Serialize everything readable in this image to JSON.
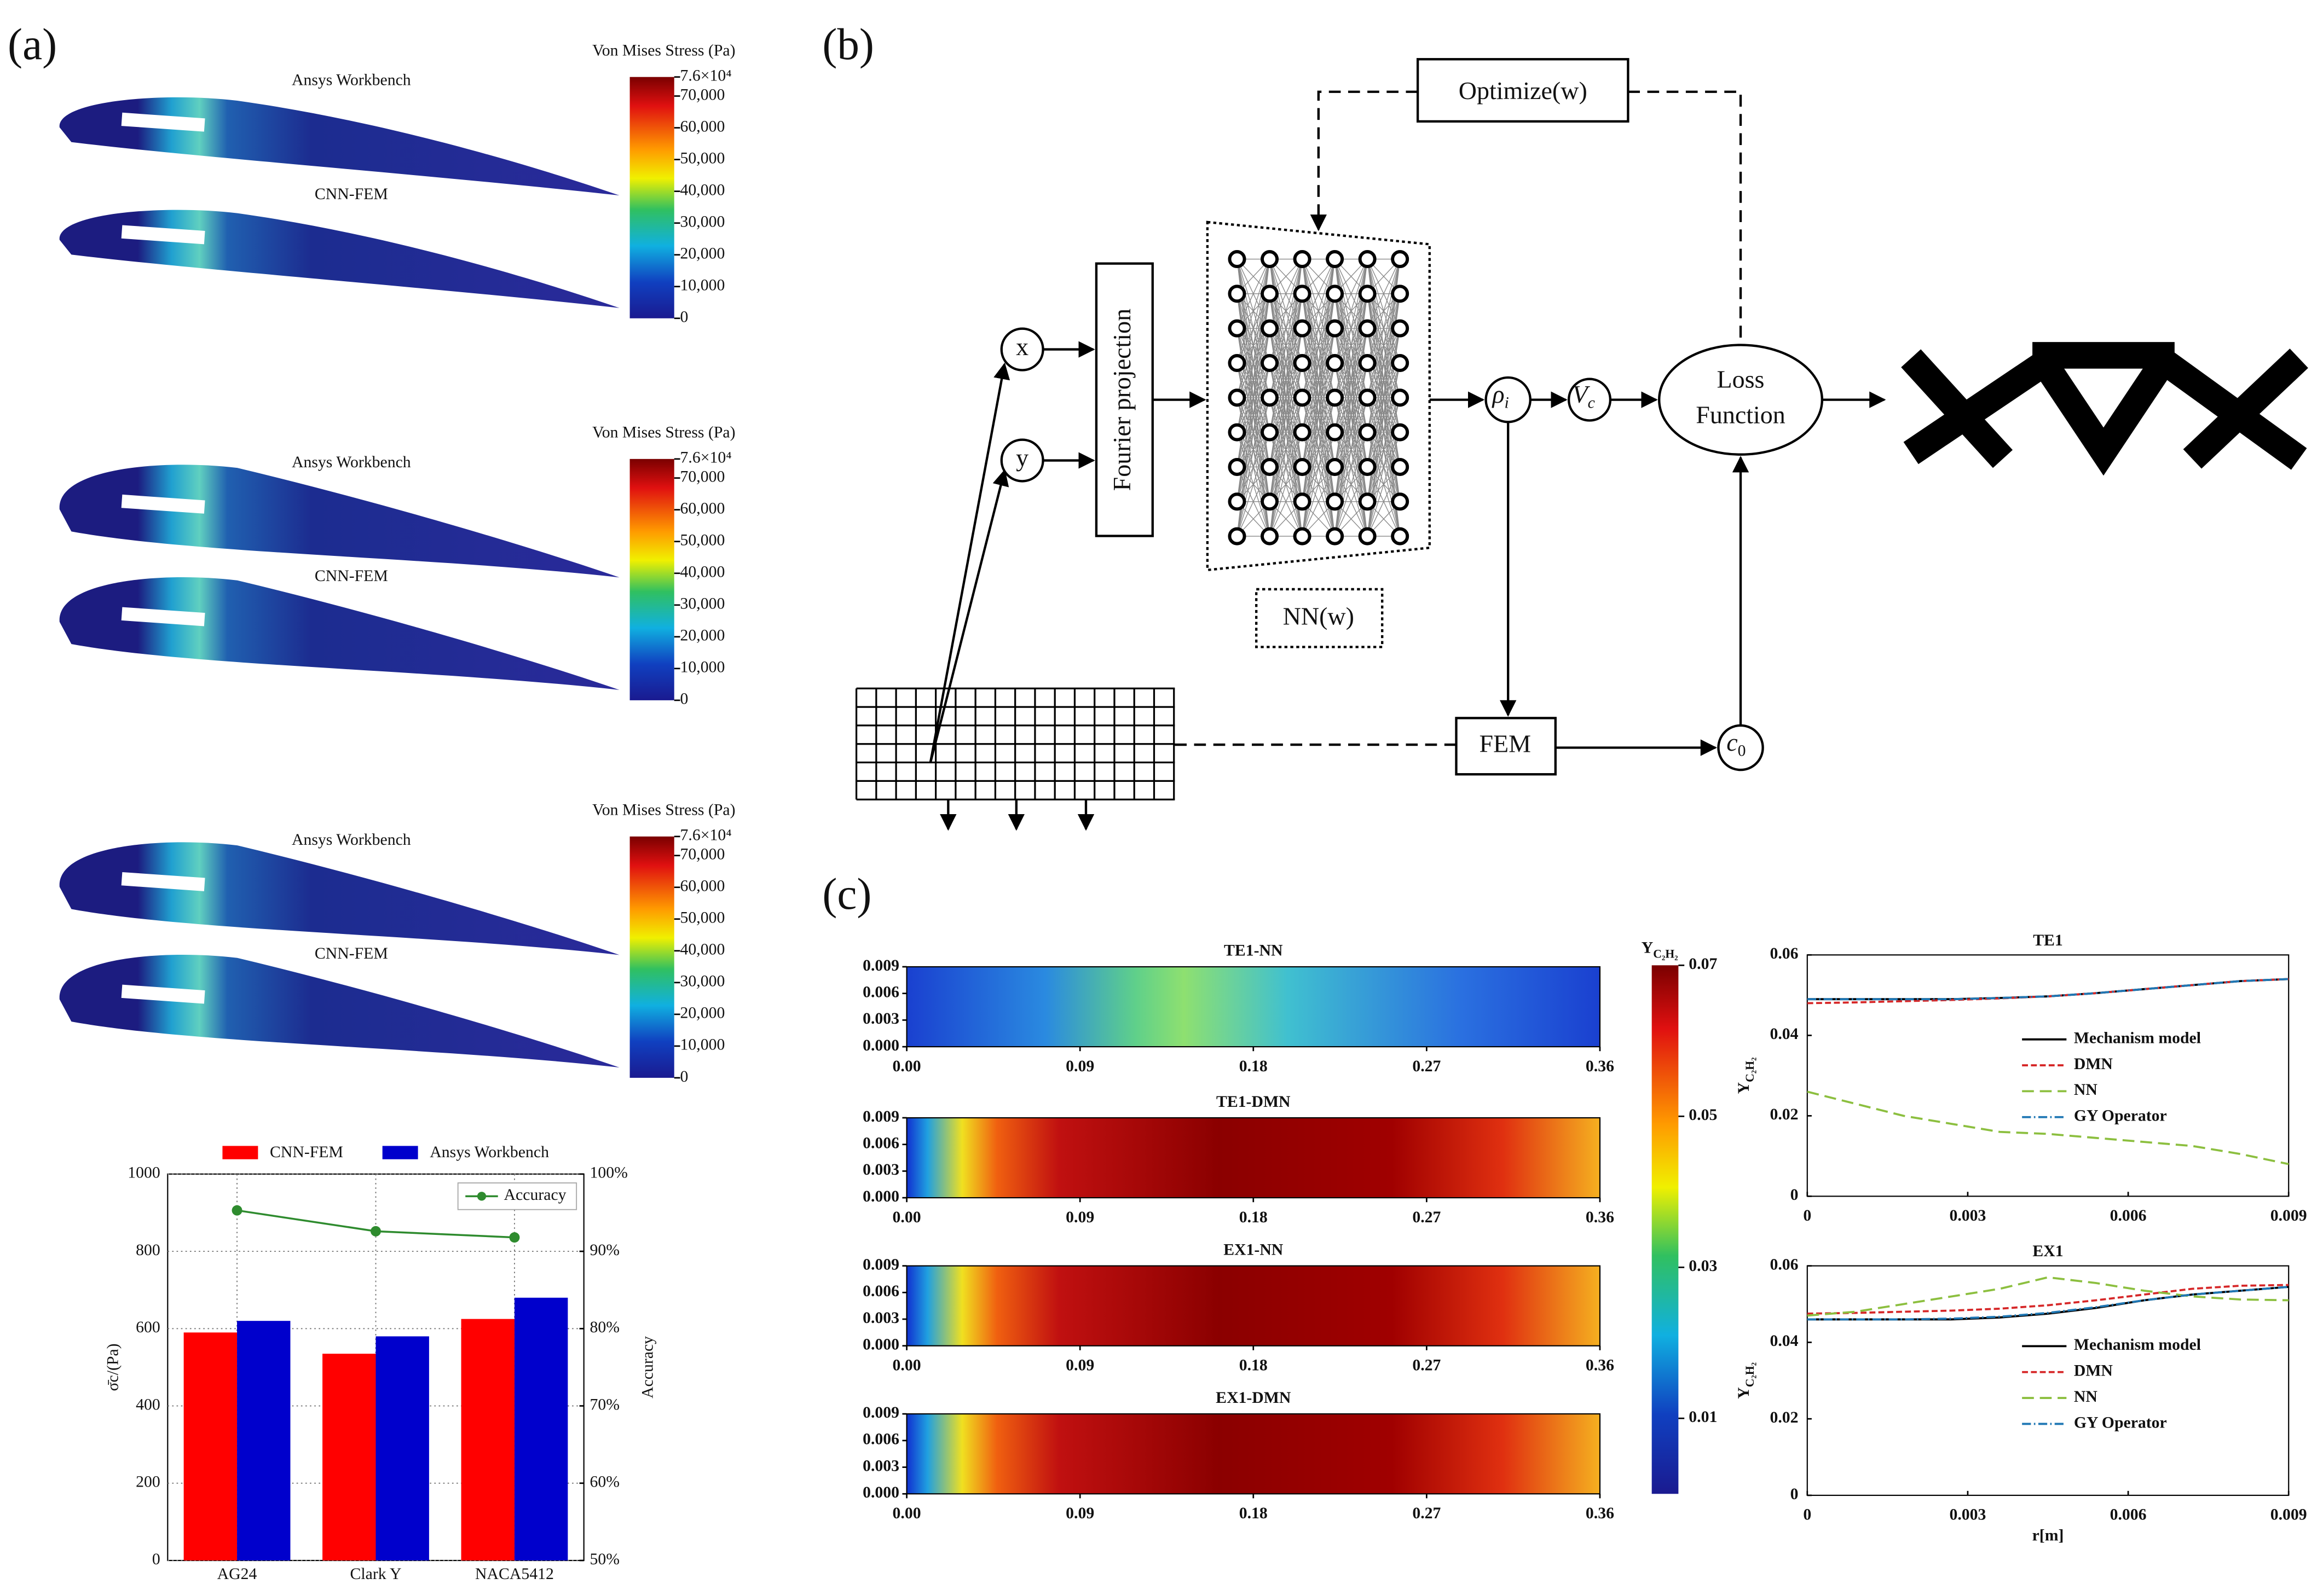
{
  "panel_labels": [
    "(a)",
    "(b)",
    "(c)"
  ],
  "airfoils": {
    "titles": [
      "Ansys Workbench",
      "CNN-FEM"
    ],
    "colorbar": {
      "title": "Von Mises Stress (Pa)",
      "lim": [
        0,
        76000
      ],
      "ticks": [
        {
          "value": 76000,
          "label": "7.6×10⁴"
        },
        {
          "value": 70000,
          "label": "70,000"
        },
        {
          "value": 60000,
          "label": "60,000"
        },
        {
          "value": 50000,
          "label": "50,000"
        },
        {
          "value": 40000,
          "label": "40,000"
        },
        {
          "value": 30000,
          "label": "30,000"
        },
        {
          "value": 20000,
          "label": "20,000"
        },
        {
          "value": 10000,
          "label": "10,000"
        },
        0
      ]
    }
  },
  "diagram": {
    "optimize": "Optimize(w)",
    "x": "x",
    "y": "y",
    "fourier": "Fourier projection",
    "nn": "NN(w)",
    "rho": {
      "base": "ρ",
      "sub": "i"
    },
    "vc": {
      "base": "V",
      "sub": "c"
    },
    "loss": [
      "Loss",
      "Function"
    ],
    "fem": "FEM",
    "c0": {
      "base": "c",
      "sub": "0"
    }
  },
  "heatmaps": {
    "titles": [
      "TE1-NN",
      "TE1-DMN",
      "EX1-NN",
      "EX1-DMN"
    ],
    "xlim": [
      0,
      0.36
    ],
    "xticks": [
      {
        "value": 0,
        "label": "0.00"
      },
      0.09,
      0.18,
      0.27,
      0.36
    ],
    "ylim": [
      0,
      0.009
    ],
    "yticks": [
      {
        "value": 0,
        "label": "0.000"
      },
      0.003,
      0.006,
      0.009
    ],
    "colorbar": {
      "title": {
        "base": "Y",
        "sub": "C₂H₂"
      },
      "lim": [
        0,
        0.07
      ],
      "ticks": [
        0.01,
        0.03,
        0.05,
        0.07
      ]
    }
  },
  "chart_data": [
    {
      "type": "bar",
      "categories": [
        "AG24",
        "Clark Y",
        "NACA5412"
      ],
      "series": [
        {
          "name": "CNN-FEM",
          "color": "#ff0000",
          "values": [
            590,
            535,
            625
          ]
        },
        {
          "name": "Ansys Workbench",
          "color": "#0000cc",
          "values": [
            620,
            580,
            680
          ]
        },
        {
          "name": "Accuracy",
          "color": "#2e8b2e",
          "values": [
            95.3,
            92.6,
            91.8
          ],
          "axis": "y2"
        }
      ],
      "ylim": [
        0,
        1000
      ],
      "yticks": [
        0,
        200,
        400,
        600,
        800,
        1000
      ],
      "y2lim": [
        50,
        100
      ],
      "y2ticks": [
        {
          "value": 50,
          "label": "50%"
        },
        {
          "value": 60,
          "label": "60%"
        },
        {
          "value": 70,
          "label": "70%"
        },
        {
          "value": 80,
          "label": "80%"
        },
        {
          "value": 90,
          "label": "90%"
        },
        {
          "value": 100,
          "label": "100%"
        }
      ],
      "y_label": "σ̄c/(Pa)",
      "y2_label": "Accuracy",
      "grid": true
    },
    {
      "type": "line",
      "title": "TE1",
      "x": [
        0,
        0.0009,
        0.0018,
        0.0027,
        0.0036,
        0.0045,
        0.0054,
        0.0063,
        0.0072,
        0.0081,
        0.009
      ],
      "series": [
        {
          "name": "Mechanism model",
          "color": "#000000",
          "dash": "none",
          "values": [
            0.049,
            0.049,
            0.049,
            0.049,
            0.0493,
            0.0497,
            0.0505,
            0.0515,
            0.0525,
            0.0535,
            0.054
          ]
        },
        {
          "name": "DMN",
          "color": "#d62728",
          "dash": "4,2",
          "values": [
            0.048,
            0.0482,
            0.0485,
            0.0488,
            0.0492,
            0.0497,
            0.0505,
            0.0515,
            0.0525,
            0.0535,
            0.054
          ]
        },
        {
          "name": "NN",
          "color": "#8cbf3f",
          "dash": "8,4",
          "values": [
            0.026,
            0.023,
            0.02,
            0.018,
            0.016,
            0.0155,
            0.0145,
            0.0135,
            0.0125,
            0.0105,
            0.008
          ]
        },
        {
          "name": "GY Operator",
          "color": "#1f77b4",
          "dash": "6,2,1,2",
          "values": [
            0.049,
            0.049,
            0.049,
            0.049,
            0.0493,
            0.0497,
            0.0505,
            0.0515,
            0.0525,
            0.0535,
            0.054
          ]
        }
      ],
      "xlim": [
        0,
        0.009
      ],
      "xticks": [
        0,
        0.003,
        0.006,
        0.009
      ],
      "ylim": [
        0,
        0.06
      ],
      "yticks": [
        0,
        0.02,
        0.04,
        0.06
      ],
      "y_label": {
        "base": "Y",
        "sub": "C₂H₂"
      }
    },
    {
      "type": "line",
      "title": "EX1",
      "x": [
        0,
        0.0009,
        0.0018,
        0.0027,
        0.0036,
        0.0045,
        0.0054,
        0.0063,
        0.0072,
        0.0081,
        0.009
      ],
      "series": [
        {
          "name": "Mechanism model",
          "color": "#000000",
          "dash": "none",
          "values": [
            0.046,
            0.046,
            0.046,
            0.046,
            0.0465,
            0.0475,
            0.049,
            0.051,
            0.0525,
            0.0535,
            0.0545
          ]
        },
        {
          "name": "DMN",
          "color": "#d62728",
          "dash": "4,2",
          "values": [
            0.0475,
            0.0477,
            0.048,
            0.0483,
            0.0488,
            0.0497,
            0.051,
            0.0525,
            0.054,
            0.0548,
            0.055
          ]
        },
        {
          "name": "NN",
          "color": "#8cbf3f",
          "dash": "8,4",
          "values": [
            0.047,
            0.048,
            0.05,
            0.052,
            0.054,
            0.057,
            0.0555,
            0.0535,
            0.052,
            0.0512,
            0.051
          ]
        },
        {
          "name": "GY Operator",
          "color": "#1f77b4",
          "dash": "6,2,1,2",
          "values": [
            0.046,
            0.046,
            0.046,
            0.0462,
            0.0467,
            0.0477,
            0.0492,
            0.051,
            0.0525,
            0.0535,
            0.0545
          ]
        }
      ],
      "xlim": [
        0,
        0.009
      ],
      "xticks": [
        0,
        0.003,
        0.006,
        0.009
      ],
      "ylim": [
        0,
        0.06
      ],
      "yticks": [
        0,
        0.02,
        0.04,
        0.06
      ],
      "y_label": {
        "base": "Y",
        "sub": "C₂H₂"
      },
      "x_label": "r[m]"
    }
  ]
}
